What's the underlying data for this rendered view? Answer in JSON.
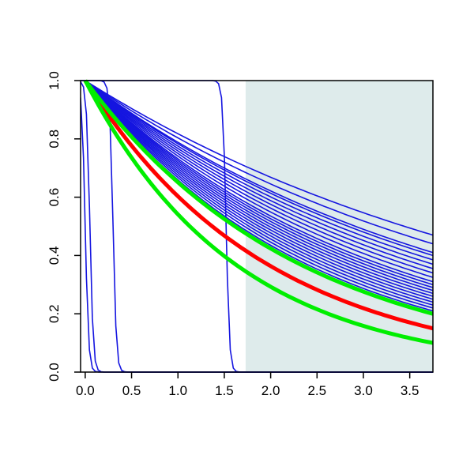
{
  "chart_data": {
    "type": "line",
    "title": "",
    "xlabel": "",
    "ylabel": "",
    "xlim": [
      -0.05,
      3.75
    ],
    "ylim": [
      0.0,
      1.0
    ],
    "x_ticks": [
      "0.0",
      "0.5",
      "1.0",
      "1.5",
      "2.0",
      "2.5",
      "3.0",
      "3.5"
    ],
    "y_ticks": [
      "0.0",
      "0.2",
      "0.4",
      "0.6",
      "0.8",
      "1.0"
    ],
    "grid": false,
    "legend": "none",
    "shaded_region": {
      "x_from": 1.73,
      "x_to": 3.75,
      "color": "#deebeb"
    },
    "colors": {
      "bundle": "#1515e0",
      "red": "#ff0000",
      "green": "#00ee00",
      "axis": "#000000"
    },
    "series": [
      {
        "color": "blue",
        "kind": "exp",
        "values_at_x_max": [
          0.47,
          0.44,
          0.41,
          0.4,
          0.385,
          0.37,
          0.355,
          0.34,
          0.325,
          0.31,
          0.3,
          0.29,
          0.28,
          0.27,
          0.26,
          0.25,
          0.24,
          0.23,
          0.22,
          0.21
        ]
      },
      {
        "color": "blue",
        "kind": "steep-drop",
        "drop_x": [
          0.0,
          0.3,
          0.05,
          1.52
        ],
        "y_before": 1.0,
        "y_after": 0.0
      },
      {
        "color": "red",
        "kind": "exp",
        "value_at_x_max": 0.15
      },
      {
        "color": "green",
        "kind": "exp",
        "values_at_x_max": [
          0.2,
          0.1
        ]
      }
    ]
  }
}
